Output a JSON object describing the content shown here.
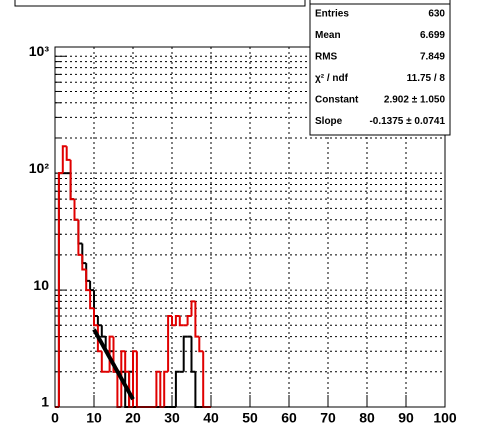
{
  "chart_data": {
    "type": "histogram",
    "log_y": true,
    "grid": true,
    "xlim": [
      0,
      100
    ],
    "ylim": [
      1,
      1200
    ],
    "xticks": [
      0,
      10,
      20,
      30,
      40,
      50,
      60,
      70,
      80,
      90,
      100
    ],
    "yticks": [
      1,
      10,
      {
        "value": 100,
        "label": "10²"
      },
      {
        "value": 1000,
        "label": "10³"
      }
    ],
    "yminor_ticks": [
      2,
      3,
      4,
      5,
      6,
      7,
      8,
      9,
      20,
      30,
      40,
      50,
      60,
      70,
      80,
      90,
      200,
      300,
      400,
      500,
      600,
      700,
      800,
      900
    ],
    "bins": [
      0,
      1,
      2,
      3,
      4,
      5,
      6,
      7,
      8,
      9,
      10,
      11,
      12,
      13,
      14,
      15,
      16,
      17,
      18,
      19,
      20,
      21,
      22,
      23,
      24,
      25,
      26,
      27,
      28,
      29,
      30,
      31,
      32,
      33,
      34,
      35,
      36,
      37,
      38,
      39,
      40
    ],
    "series": [
      {
        "color": "#000000",
        "values": [
          0,
          100,
          100,
          100,
          60,
          40,
          25,
          17,
          12,
          10,
          6,
          5,
          4,
          3,
          3,
          2,
          2,
          2,
          1,
          2,
          1,
          0,
          0,
          0,
          0,
          0,
          0,
          0,
          0,
          0,
          0,
          2,
          2,
          4,
          4,
          2,
          0,
          0,
          0,
          0
        ]
      },
      {
        "color": "#e00000",
        "values": [
          0,
          100,
          170,
          130,
          60,
          40,
          20,
          15,
          10,
          7,
          5,
          3,
          2,
          2,
          4,
          2,
          1,
          3,
          2,
          1,
          3,
          0,
          0,
          0,
          0,
          0,
          2,
          1,
          2,
          6,
          5,
          6,
          5,
          5,
          6,
          8,
          4,
          3,
          1,
          0
        ]
      }
    ],
    "fit": {
      "range": [
        10,
        20
      ],
      "constant": 2.902,
      "slope": -0.1375,
      "color": "#000000"
    },
    "stats": [
      [
        "Entries",
        "630"
      ],
      [
        "Mean",
        "6.699"
      ],
      [
        "RMS",
        "7.849"
      ],
      [
        "χ² / ndf",
        "11.75 / 8"
      ],
      [
        "Constant",
        "2.902 ± 1.050"
      ],
      [
        "Slope",
        "-0.1375 ± 0.0741"
      ]
    ]
  }
}
